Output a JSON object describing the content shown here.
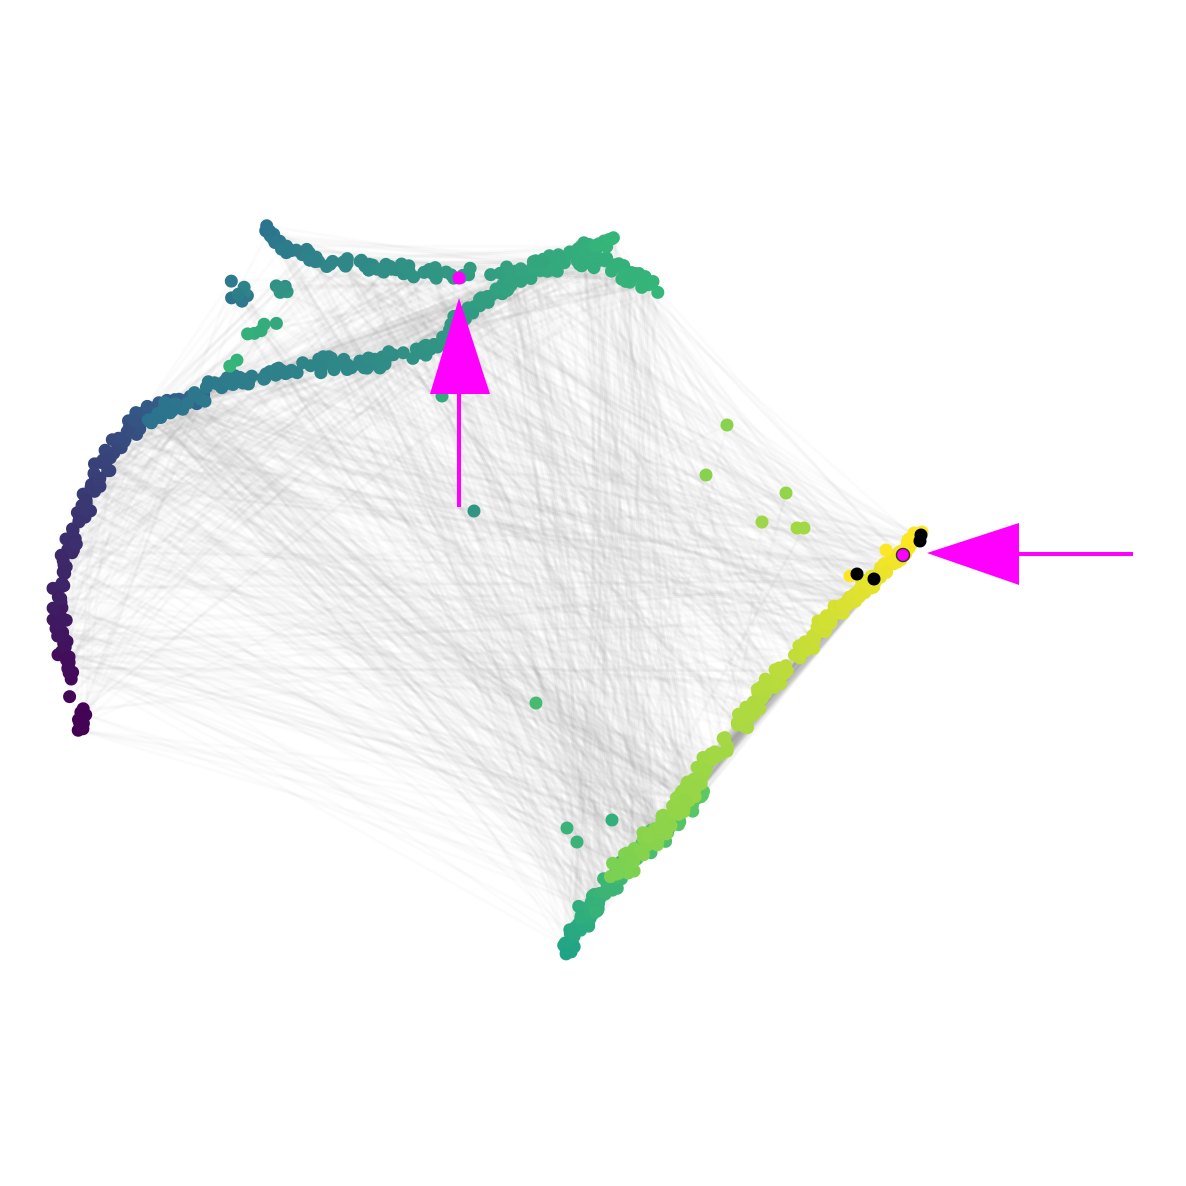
{
  "figure": {
    "kind": "network embedding plot",
    "background": "#ffffff",
    "edge_color": "#9a9a9a",
    "marker_color": "#ff00ff",
    "highlight_color": "#000000",
    "colormap": "viridis",
    "axes_visible": false
  },
  "clusters": [
    {
      "name": "left-arc",
      "color_range": [
        "#440154",
        "#31688e"
      ]
    },
    {
      "name": "top-ridge",
      "color_range": [
        "#2c728e",
        "#35b779"
      ]
    },
    {
      "name": "lower-left-knot",
      "color_range": [
        "#20a486",
        "#5ec962"
      ]
    },
    {
      "name": "right-diagonal",
      "color_range": [
        "#7ad151",
        "#fde725"
      ]
    }
  ],
  "annotations": [
    {
      "name": "upward-arrow",
      "direction": "up",
      "target": "magenta-node-top"
    },
    {
      "name": "leftward-arrow",
      "direction": "left",
      "target": "magenta-node-right"
    }
  ],
  "special_nodes": {
    "magenta_count": 2,
    "black_count": 4
  }
}
